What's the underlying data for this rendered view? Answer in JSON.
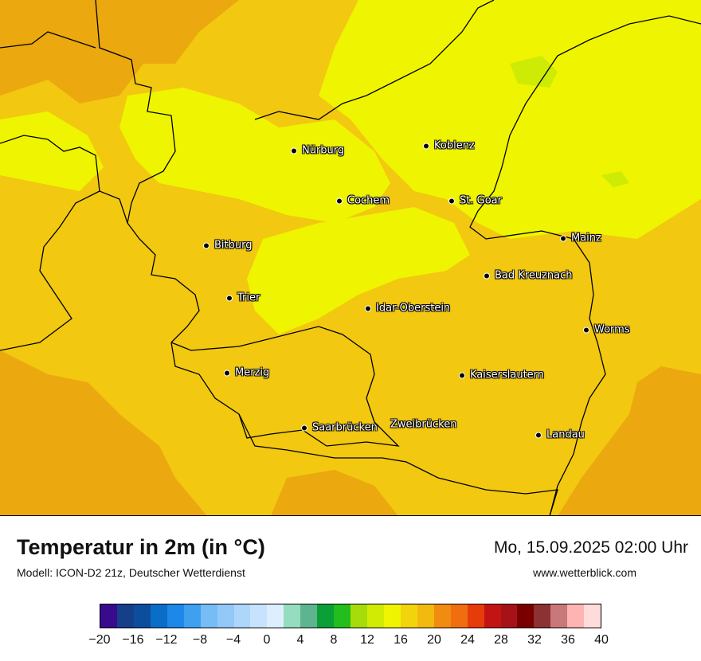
{
  "title": "Temperatur in 2m (in °C)",
  "subtitle": "Modell: ICON-D2 21z, Deutscher Wetterdienst",
  "datetime": "Mo, 15.09.2025 02:00 Uhr",
  "website": "www.wetterblick.com",
  "map": {
    "field_colors": {
      "warmest": "#eba80f",
      "warm": "#f2c810",
      "mild": "#eff400",
      "coolest": "#cdeb05"
    },
    "border_color": "#000000",
    "cities": [
      {
        "name": "Nürburg"
      },
      {
        "name": "Koblenz"
      },
      {
        "name": "Cochem"
      },
      {
        "name": "St. Goar"
      },
      {
        "name": "Mainz"
      },
      {
        "name": "Bitburg"
      },
      {
        "name": "Bad Kreuznach"
      },
      {
        "name": "Trier"
      },
      {
        "name": "Idar-Oberstein"
      },
      {
        "name": "Worms"
      },
      {
        "name": "Merzig"
      },
      {
        "name": "Kaiserslautern"
      },
      {
        "name": "Saarbrücken"
      },
      {
        "name": "Zweibrücken"
      },
      {
        "name": "Landau"
      }
    ]
  },
  "colorbar": {
    "unit": "°C",
    "ticks": [
      "−20",
      "−16",
      "−12",
      "−8",
      "−4",
      "0",
      "4",
      "8",
      "12",
      "16",
      "20",
      "24",
      "28",
      "32",
      "36",
      "40"
    ],
    "colors": [
      "#3a0a8c",
      "#163f8a",
      "#0c4e9c",
      "#0a6ec8",
      "#1e88e8",
      "#3fa0f0",
      "#76bcf5",
      "#93c8f8",
      "#aed6fb",
      "#c7e2fc",
      "#ddeefe",
      "#96dcc0",
      "#5eb48e",
      "#0aa037",
      "#23be1e",
      "#a6dc0a",
      "#d2eb05",
      "#eff400",
      "#f2d40c",
      "#f2b90f",
      "#f08c0f",
      "#f06e0f",
      "#e63c0a",
      "#c31414",
      "#a71218",
      "#7a0000",
      "#8c3232",
      "#c8787a",
      "#ffb4b4",
      "#ffdcdc"
    ]
  }
}
